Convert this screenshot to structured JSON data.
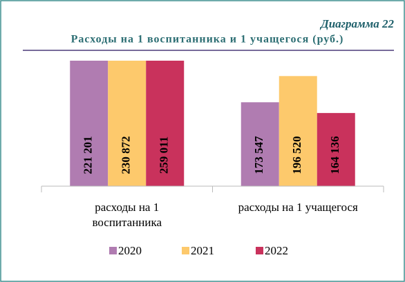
{
  "chart_data": {
    "type": "bar",
    "subtitle": "Диаграмма 22",
    "title": "Расходы на 1 воспитанника и 1 учащегося (руб.)",
    "categories": [
      "расходы на 1 воспитанника",
      "расходы на 1 учащегося"
    ],
    "series": [
      {
        "name": "2020",
        "color": "#b07cb1",
        "values": [
          221201,
          173547
        ],
        "value_labels": [
          "221 201",
          "173 547"
        ]
      },
      {
        "name": "2021",
        "color": "#fdc96c",
        "values": [
          230872,
          196520
        ],
        "value_labels": [
          "230 872",
          "196 520"
        ]
      },
      {
        "name": "2022",
        "color": "#c9325c",
        "values": [
          259011,
          164136
        ],
        "value_labels": [
          "259 011",
          "164 136"
        ]
      }
    ],
    "ylim": [
      100000,
      210000
    ],
    "legend": "bottom"
  }
}
